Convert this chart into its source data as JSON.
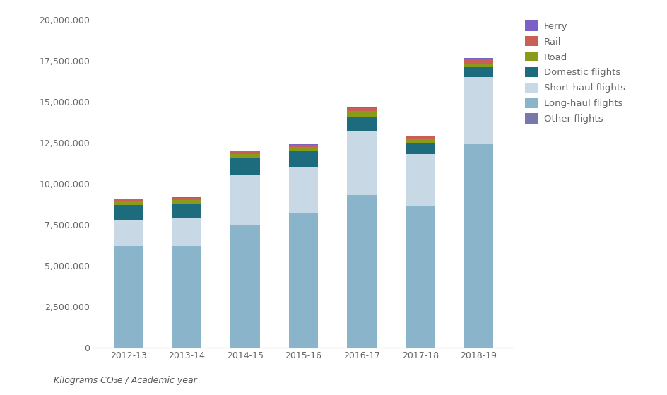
{
  "years": [
    "2012-13",
    "2013-14",
    "2014-15",
    "2015-16",
    "2016-17",
    "2017-18",
    "2018-19"
  ],
  "series": {
    "Long-haul flights": [
      6200000,
      6200000,
      7500000,
      8200000,
      9300000,
      8600000,
      12400000
    ],
    "Short-haul flights": [
      1600000,
      1700000,
      3000000,
      2800000,
      3900000,
      3200000,
      4100000
    ],
    "Domestic flights": [
      900000,
      900000,
      1100000,
      1000000,
      900000,
      650000,
      600000
    ],
    "Road": [
      200000,
      200000,
      220000,
      230000,
      320000,
      270000,
      230000
    ],
    "Rail": [
      150000,
      150000,
      140000,
      140000,
      200000,
      160000,
      250000
    ],
    "Ferry": [
      40000,
      40000,
      40000,
      50000,
      90000,
      50000,
      100000
    ],
    "Other flights": [
      0,
      0,
      0,
      0,
      0,
      0,
      0
    ]
  },
  "colors": {
    "Long-haul flights": "#8ab4c9",
    "Short-haul flights": "#c8d9e5",
    "Domestic flights": "#1c6c7e",
    "Road": "#8a9a1a",
    "Rail": "#c86055",
    "Ferry": "#7b60c8",
    "Other flights": "#7878aa"
  },
  "legend_order": [
    "Ferry",
    "Rail",
    "Road",
    "Domestic flights",
    "Short-haul flights",
    "Long-haul flights",
    "Other flights"
  ],
  "xlabel_note": "Kilograms CO₂e / Academic year",
  "ylim": [
    0,
    20000000
  ],
  "ytick_step": 2500000,
  "bar_width": 0.5,
  "background_color": "#ffffff",
  "grid_color": "#cccccc",
  "tick_color": "#666666",
  "label_fontsize": 9,
  "legend_fontsize": 9.5
}
